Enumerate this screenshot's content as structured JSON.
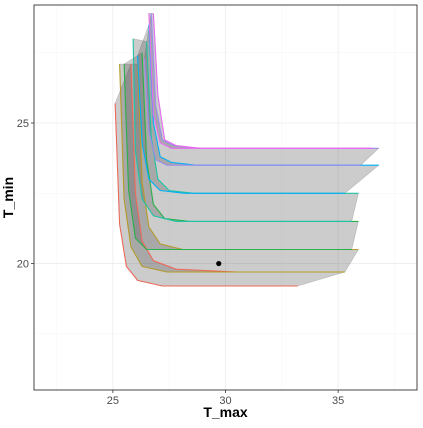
{
  "chart_data": {
    "type": "area",
    "xlabel": "T_max",
    "ylabel": "T_min",
    "xlim": [
      21.5,
      38.5
    ],
    "ylim": [
      15.5,
      29.2
    ],
    "x_ticks": [
      25,
      30,
      35
    ],
    "y_ticks": [
      20,
      25
    ],
    "x_tick_labels": [
      "25",
      "30",
      "35"
    ],
    "y_tick_labels": [
      "20",
      "25"
    ],
    "grid": true,
    "legend": "none",
    "ribbon_fill": "#555555",
    "ribbon_alpha": 0.3,
    "point": {
      "x": 29.7,
      "y": 20.0,
      "color": "#000000"
    },
    "series": [
      {
        "color": "#ed6a5a",
        "upper": [
          [
            25.8,
            27.1
          ],
          [
            26.0,
            22.5
          ],
          [
            26.3,
            20.8
          ],
          [
            26.8,
            20.1
          ],
          [
            27.8,
            19.8
          ],
          [
            30.5,
            19.7
          ],
          [
            35.3,
            19.7
          ]
        ],
        "lower": [
          [
            25.1,
            25.7
          ],
          [
            25.3,
            21.4
          ],
          [
            25.6,
            19.9
          ],
          [
            26.1,
            19.4
          ],
          [
            27.2,
            19.2
          ],
          [
            30.0,
            19.2
          ],
          [
            33.2,
            19.2
          ]
        ]
      },
      {
        "color": "#b59b2a",
        "upper": [
          [
            26.1,
            27.1
          ],
          [
            26.3,
            22.9
          ],
          [
            26.6,
            21.3
          ],
          [
            27.1,
            20.7
          ],
          [
            28.1,
            20.5
          ],
          [
            31.0,
            20.5
          ],
          [
            35.9,
            20.5
          ]
        ],
        "lower": [
          [
            25.3,
            27.1
          ],
          [
            25.5,
            22.3
          ],
          [
            25.8,
            20.6
          ],
          [
            26.3,
            19.9
          ],
          [
            27.4,
            19.7
          ],
          [
            30.0,
            19.7
          ],
          [
            35.3,
            19.7
          ]
        ]
      },
      {
        "color": "#2bb04a",
        "upper": [
          [
            26.3,
            27.5
          ],
          [
            26.5,
            23.7
          ],
          [
            26.8,
            22.1
          ],
          [
            27.3,
            21.6
          ],
          [
            28.4,
            21.5
          ],
          [
            31.5,
            21.5
          ],
          [
            35.9,
            21.5
          ]
        ],
        "lower": [
          [
            25.5,
            27.1
          ],
          [
            25.7,
            22.6
          ],
          [
            26.0,
            20.9
          ],
          [
            26.5,
            20.5
          ],
          [
            27.6,
            20.5
          ],
          [
            30.5,
            20.5
          ],
          [
            35.6,
            20.5
          ]
        ]
      },
      {
        "color": "#1fc4a6",
        "upper": [
          [
            26.5,
            27.9
          ],
          [
            26.7,
            24.5
          ],
          [
            27.0,
            23.0
          ],
          [
            27.5,
            22.6
          ],
          [
            28.6,
            22.5
          ],
          [
            31.5,
            22.5
          ],
          [
            35.9,
            22.5
          ]
        ],
        "lower": [
          [
            25.9,
            28.0
          ],
          [
            26.0,
            24.0
          ],
          [
            26.3,
            22.3
          ],
          [
            26.8,
            21.7
          ],
          [
            27.8,
            21.5
          ],
          [
            31.0,
            21.5
          ],
          [
            35.6,
            21.5
          ]
        ]
      },
      {
        "color": "#00b0f6",
        "upper": [
          [
            26.6,
            28.5
          ],
          [
            26.8,
            25.0
          ],
          [
            27.1,
            23.8
          ],
          [
            27.6,
            23.6
          ],
          [
            28.7,
            23.5
          ],
          [
            32.0,
            23.5
          ],
          [
            36.8,
            23.5
          ]
        ],
        "lower": [
          [
            26.1,
            27.4
          ],
          [
            26.3,
            24.3
          ],
          [
            26.6,
            23.0
          ],
          [
            27.1,
            22.6
          ],
          [
            28.2,
            22.5
          ],
          [
            31.0,
            22.5
          ],
          [
            35.3,
            22.5
          ]
        ]
      },
      {
        "color": "#9b8cf0",
        "upper": [
          [
            26.7,
            28.9
          ],
          [
            26.9,
            25.6
          ],
          [
            27.2,
            24.4
          ],
          [
            27.7,
            24.2
          ],
          [
            28.8,
            24.1
          ],
          [
            32.0,
            24.1
          ],
          [
            36.8,
            24.1
          ]
        ],
        "lower": [
          [
            26.4,
            27.3
          ],
          [
            26.6,
            24.7
          ],
          [
            26.9,
            23.7
          ],
          [
            27.4,
            23.5
          ],
          [
            28.5,
            23.5
          ],
          [
            32.0,
            23.5
          ],
          [
            36.0,
            23.5
          ]
        ]
      },
      {
        "color": "#e76bf3",
        "upper": [
          [
            26.8,
            28.9
          ],
          [
            27.0,
            26.0
          ],
          [
            27.3,
            24.4
          ],
          [
            27.8,
            24.2
          ],
          [
            28.9,
            24.1
          ],
          [
            32.0,
            24.1
          ],
          [
            36.5,
            24.1
          ]
        ],
        "lower": [
          [
            26.6,
            28.9
          ],
          [
            26.8,
            25.3
          ],
          [
            27.1,
            24.3
          ],
          [
            27.6,
            24.1
          ],
          [
            28.7,
            24.1
          ],
          [
            32.0,
            24.1
          ],
          [
            36.5,
            24.1
          ]
        ]
      }
    ]
  }
}
